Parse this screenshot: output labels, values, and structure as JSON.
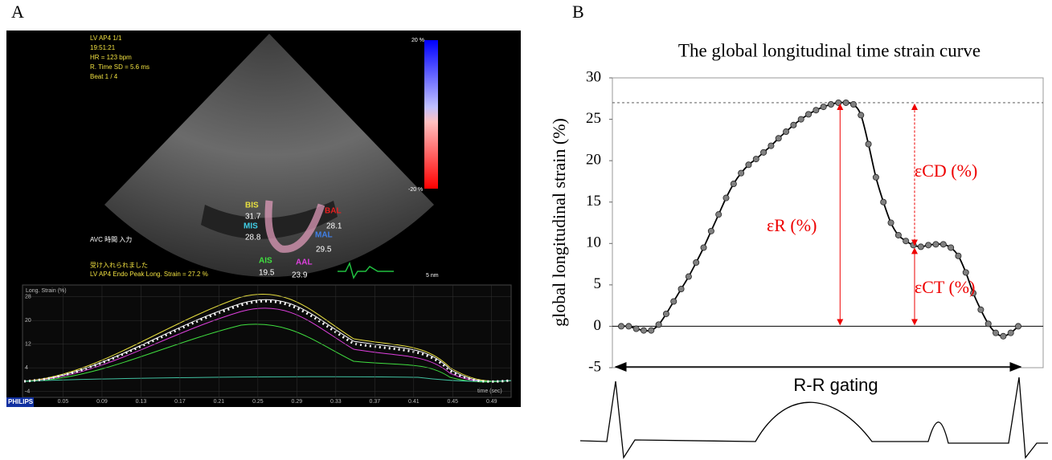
{
  "panel_a": {
    "label": "A",
    "info": [
      "LV AP4  1/1",
      "19:51:21",
      "HR = 123 bpm",
      "R. Time SD = 5.6 ms",
      "Beat 1 / 4"
    ],
    "scale_top": "20 %",
    "scale_bottom": "-20 %",
    "avc": "AVC 時間 入力",
    "accepted": "受け入れられました",
    "peak_text": "LV AP4 Endo Peak Long. Strain = 27.2 %",
    "depth": "5 nm",
    "segments": [
      {
        "name": "BIS",
        "value": "31.7",
        "color": "#e8e040"
      },
      {
        "name": "MIS",
        "value": "28.8",
        "color": "#40d0e8"
      },
      {
        "name": "AIS",
        "value": "19.5",
        "color": "#40e040"
      },
      {
        "name": "BAL",
        "value": "28.1",
        "color": "#e82020"
      },
      {
        "name": "MAL",
        "value": "29.5",
        "color": "#4080e8"
      },
      {
        "name": "AAL",
        "value": "23.9",
        "color": "#e040e0"
      }
    ],
    "plot": {
      "ylabel": "Long. Strain (%)",
      "xlabel": "time (sec)",
      "brand": "PHILIPS",
      "xlim": [
        0.01,
        0.51
      ],
      "xticks": [
        0.05,
        0.09,
        0.13,
        0.17,
        0.21,
        0.25,
        0.29,
        0.33,
        0.37,
        0.41,
        0.45,
        0.49
      ],
      "ylim": [
        -6,
        32
      ],
      "yticks": [
        28,
        20,
        12,
        4,
        -4
      ]
    }
  },
  "chart_data": {
    "type": "line",
    "panel_label": "B",
    "title": "The global longitudinal time strain curve",
    "ylabel": "global longitudinal strain (%)",
    "ylim": [
      -5,
      30
    ],
    "yticks": [
      -5,
      0,
      5,
      10,
      15,
      20,
      25,
      30
    ],
    "series": [
      {
        "color": "#000000",
        "values": [
          0,
          0,
          -0.3,
          -0.5,
          -0.5,
          0.2,
          1.5,
          3,
          4.5,
          6,
          7.7,
          9.5,
          11.5,
          13.5,
          15.5,
          17.2,
          18.5,
          19.5,
          20.2,
          21,
          21.8,
          22.7,
          23.5,
          24.3,
          25,
          25.6,
          26.1,
          26.5,
          26.8,
          27,
          27,
          26.8,
          25.5,
          22,
          18,
          15,
          12.5,
          11,
          10.3,
          9.8,
          9.6,
          9.8,
          9.9,
          9.9,
          9.5,
          8.5,
          6.5,
          4,
          2,
          0.3,
          -0.8,
          -1.2,
          -0.8,
          0
        ]
      }
    ],
    "annotations": [
      "εR (%)",
      "εCD (%)",
      "εCT (%)"
    ],
    "xlabel": "R-R gating"
  }
}
